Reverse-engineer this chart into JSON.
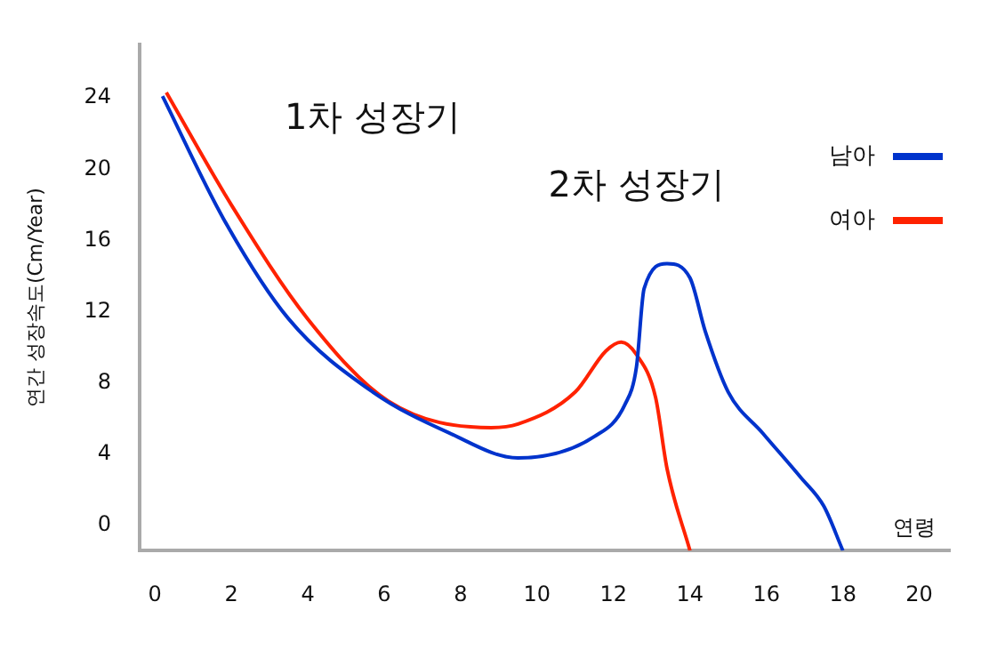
{
  "chart_data": {
    "type": "line",
    "xlabel": "연령",
    "ylabel": "연간 성장속도(Cm/Year)",
    "annotations": [
      "1차 성장기",
      "2차 성장기"
    ],
    "series": [
      {
        "name": "남아",
        "color": "#0033cc",
        "x": [
          0.2,
          1.8,
          3.5,
          5.7,
          7.7,
          9.5,
          11.5,
          12.3,
          12.6,
          12.8,
          13.4,
          14.0,
          14.4,
          15.0,
          15.9,
          16.9,
          17.5,
          18
        ],
        "values": [
          24.1,
          17.2,
          11.6,
          7.5,
          5.2,
          3.8,
          5.0,
          6.8,
          8.9,
          13.3,
          14.7,
          13.9,
          10.9,
          7.5,
          5.2,
          2.7,
          1.1,
          -1.4
        ]
      },
      {
        "name": "여아",
        "color": "#ff2200",
        "x": [
          0.3,
          2.0,
          4.0,
          6.1,
          8.8,
          9.5,
          11.0,
          11.8,
          12.2,
          12.6,
          13.1,
          13.4,
          14.0
        ],
        "values": [
          24.3,
          18.0,
          11.6,
          7.0,
          5.5,
          5.7,
          7.5,
          9.8,
          10.3,
          9.6,
          7.2,
          3.2,
          -1.4
        ]
      }
    ],
    "xlim": [
      -0.4,
      20.8
    ],
    "xticks": [
      0,
      2,
      4,
      6,
      8,
      10,
      12,
      14,
      16,
      18,
      20
    ],
    "ylim": [
      -1.4,
      27
    ],
    "yticks": [
      0,
      4,
      8,
      12,
      16,
      20,
      24
    ],
    "grid": false,
    "legend": "top right",
    "marker": "none",
    "line_style": "solid"
  }
}
